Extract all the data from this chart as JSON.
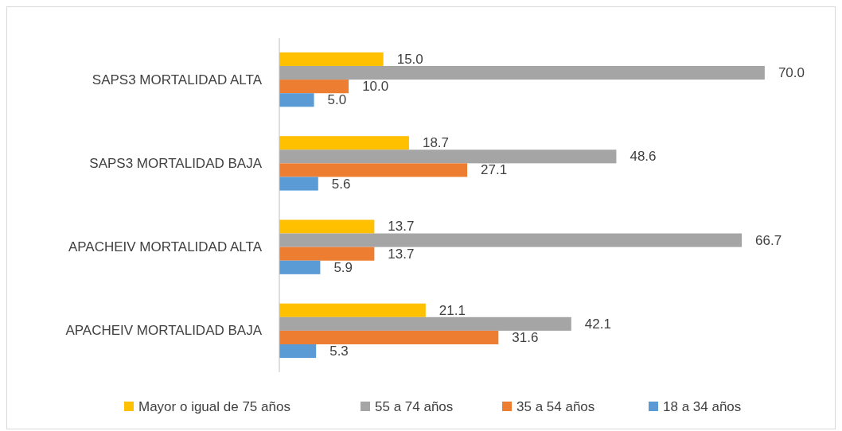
{
  "chart_data": {
    "type": "bar",
    "orientation": "horizontal",
    "categories": [
      "SAPS3 MORTALIDAD ALTA",
      "SAPS3 MORTALIDAD BAJA",
      "APACHEIV MORTALIDAD ALTA",
      "APACHEIV MORTALIDAD BAJA"
    ],
    "series": [
      {
        "name": "Mayor o igual de 75 años",
        "color": "#ffc000",
        "values": [
          15.0,
          18.7,
          13.7,
          21.1
        ],
        "value_labels": [
          "15.0",
          "18.7",
          "13.7",
          "21.1"
        ]
      },
      {
        "name": "55 a 74 años",
        "color": "#a5a5a5",
        "values": [
          70.0,
          48.6,
          66.7,
          42.1
        ],
        "value_labels": [
          "70.0",
          "48.6",
          "66.7",
          "42.1"
        ]
      },
      {
        "name": "35 a 54 años",
        "color": "#ed7d31",
        "values": [
          10.0,
          27.1,
          13.7,
          31.6
        ],
        "value_labels": [
          "10.0",
          "27.1",
          "13.7",
          "31.6"
        ]
      },
      {
        "name": "18 a 34 años",
        "color": "#5b9bd5",
        "values": [
          5.0,
          5.6,
          5.9,
          5.3
        ],
        "value_labels": [
          "5.0",
          "5.6",
          "5.9",
          "5.3"
        ]
      }
    ],
    "xlim": [
      0,
      80
    ],
    "legend": "bottom",
    "tick_labels": "y"
  }
}
